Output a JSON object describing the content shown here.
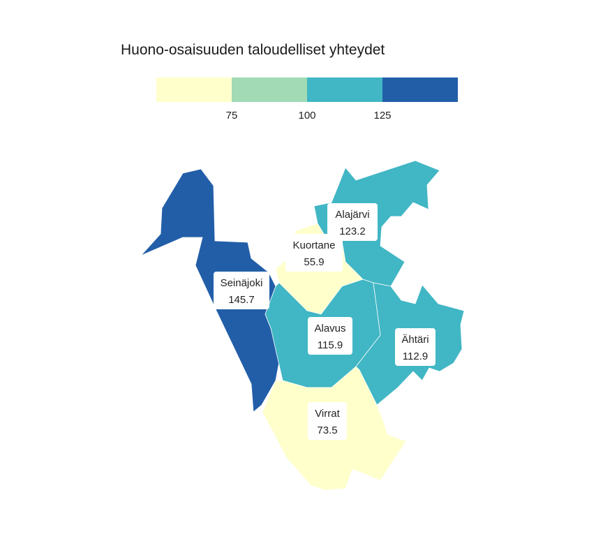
{
  "title": "Huono-osaisuuden taloudelliset yhteydet",
  "legend": {
    "bins": [
      {
        "color": "#ffffcc"
      },
      {
        "color": "#a1dab4"
      },
      {
        "color": "#41b6c4"
      },
      {
        "color": "#225ea8"
      }
    ],
    "ticks": [
      "75",
      "100",
      "125"
    ]
  },
  "chart_data": {
    "type": "choropleth",
    "title": "Huono-osaisuuden taloudelliset yhteydet",
    "breaks": [
      75,
      100,
      125
    ],
    "regions": [
      {
        "name": "Seinäjoki",
        "value": 145.7,
        "value_label": "145.7"
      },
      {
        "name": "Kuortane",
        "value": 55.9,
        "value_label": "55.9"
      },
      {
        "name": "Alajärvi",
        "value": 123.2,
        "value_label": "123.2"
      },
      {
        "name": "Alavus",
        "value": 115.9,
        "value_label": "115.9"
      },
      {
        "name": "Ähtäri",
        "value": 112.9,
        "value_label": "112.9"
      },
      {
        "name": "Virrat",
        "value": 73.5,
        "value_label": "73.5"
      }
    ]
  }
}
